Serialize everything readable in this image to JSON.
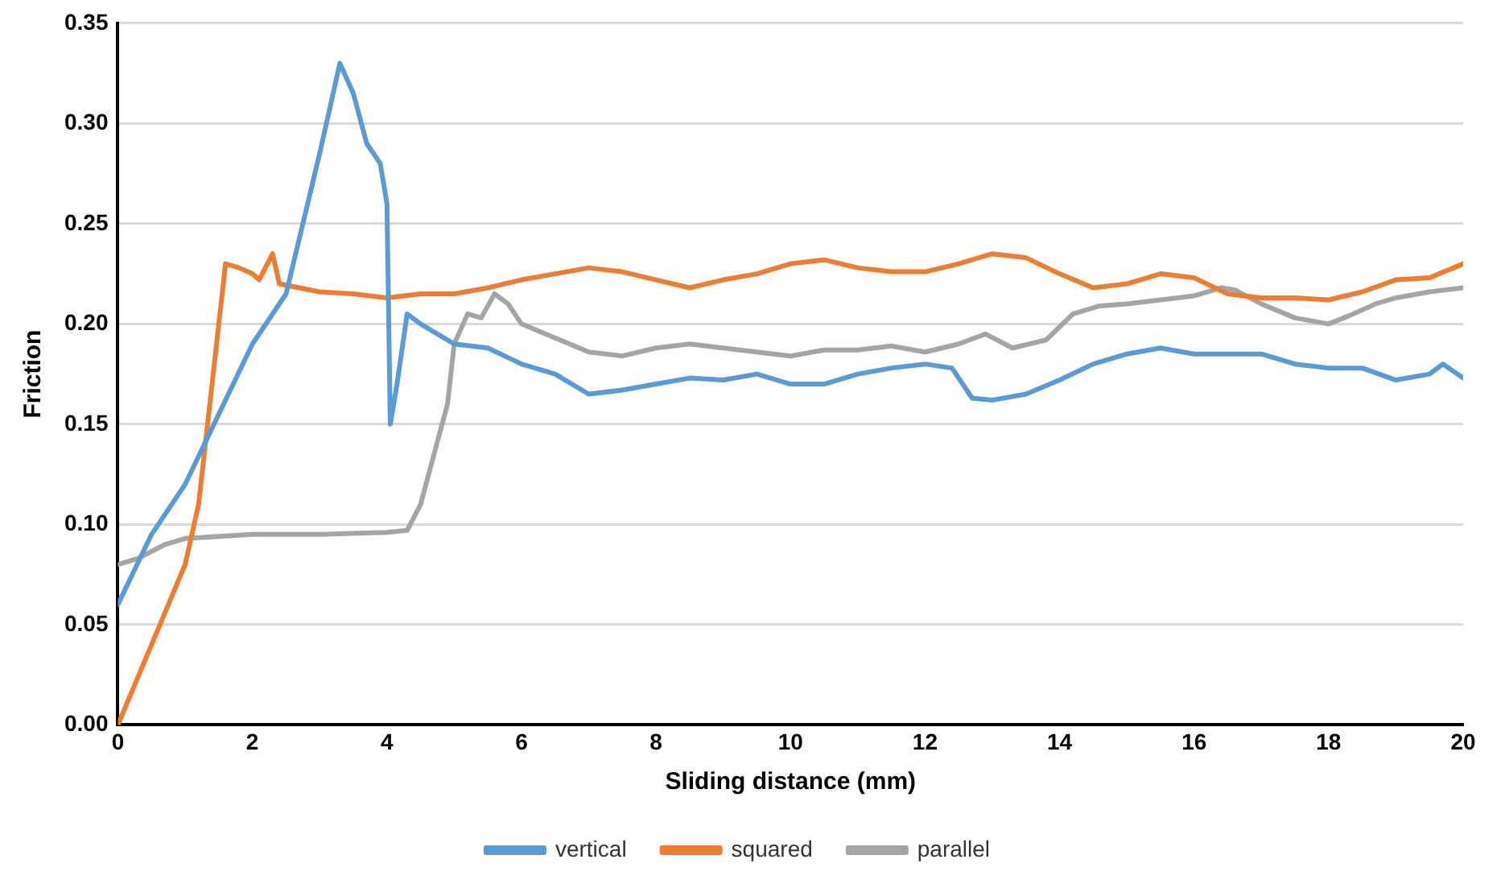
{
  "chart_data": {
    "type": "line",
    "xlabel": "Sliding distance (mm)",
    "ylabel": "Friction",
    "xlim": [
      0,
      20
    ],
    "xticks": [
      0,
      2,
      4,
      6,
      8,
      10,
      12,
      14,
      16,
      18,
      20
    ],
    "ylim": [
      0,
      0.35
    ],
    "yticks": [
      {
        "value": 0,
        "label": "0.00"
      },
      {
        "value": 0.05,
        "label": "0.05"
      },
      {
        "value": 0.1,
        "label": "0.10"
      },
      {
        "value": 0.15,
        "label": "0.15"
      },
      {
        "value": 0.2,
        "label": "0.20"
      },
      {
        "value": 0.25,
        "label": "0.25"
      },
      {
        "value": 0.3,
        "label": "0.30"
      },
      {
        "value": 0.35,
        "label": "0.35"
      }
    ],
    "grid": "y",
    "legend": "bottom",
    "marker": "none",
    "line_style": "solid",
    "series": [
      {
        "name": "vertical",
        "color": "#5b9bd5",
        "x": [
          0,
          0.5,
          1,
          1.5,
          2,
          2.5,
          3,
          3.3,
          3.5,
          3.7,
          3.9,
          4.0,
          4.05,
          4.15,
          4.3,
          4.5,
          5,
          5.5,
          6,
          6.5,
          7,
          7.5,
          8,
          8.5,
          9,
          9.5,
          10,
          10.5,
          11,
          11.5,
          12,
          12.4,
          12.7,
          13,
          13.5,
          14,
          14.5,
          15,
          15.5,
          16,
          16.5,
          17,
          17.5,
          18,
          18.5,
          19,
          19.5,
          19.7,
          20
        ],
        "values": [
          0.06,
          0.095,
          0.12,
          0.155,
          0.19,
          0.215,
          0.285,
          0.33,
          0.315,
          0.29,
          0.28,
          0.26,
          0.15,
          0.17,
          0.205,
          0.2,
          0.19,
          0.188,
          0.18,
          0.175,
          0.165,
          0.167,
          0.17,
          0.173,
          0.172,
          0.175,
          0.17,
          0.17,
          0.175,
          0.178,
          0.18,
          0.178,
          0.163,
          0.162,
          0.165,
          0.172,
          0.18,
          0.185,
          0.188,
          0.185,
          0.185,
          0.185,
          0.18,
          0.178,
          0.178,
          0.172,
          0.175,
          0.18,
          0.173
        ]
      },
      {
        "name": "squared",
        "color": "#ed7d31",
        "x": [
          0,
          0.5,
          1,
          1.2,
          1.4,
          1.6,
          1.8,
          2.0,
          2.1,
          2.3,
          2.4,
          2.7,
          3,
          3.5,
          4,
          4.5,
          5,
          5.5,
          6,
          6.5,
          7,
          7.5,
          8,
          8.5,
          9,
          9.5,
          10,
          10.5,
          11,
          11.5,
          12,
          12.5,
          13,
          13.5,
          14,
          14.5,
          15,
          15.5,
          16,
          16.5,
          17,
          17.5,
          18,
          18.5,
          19,
          19.5,
          20
        ],
        "values": [
          0,
          0.04,
          0.08,
          0.11,
          0.17,
          0.23,
          0.228,
          0.225,
          0.222,
          0.235,
          0.22,
          0.218,
          0.216,
          0.215,
          0.213,
          0.215,
          0.215,
          0.218,
          0.222,
          0.225,
          0.228,
          0.226,
          0.222,
          0.218,
          0.222,
          0.225,
          0.23,
          0.232,
          0.228,
          0.226,
          0.226,
          0.23,
          0.235,
          0.233,
          0.225,
          0.218,
          0.22,
          0.225,
          0.223,
          0.215,
          0.213,
          0.213,
          0.212,
          0.216,
          0.222,
          0.223,
          0.23
        ]
      },
      {
        "name": "parallel",
        "color": "#a5a5a5",
        "x": [
          0,
          0.3,
          0.7,
          1,
          2,
          3,
          4,
          4.3,
          4.5,
          4.7,
          4.9,
          5.0,
          5.2,
          5.4,
          5.6,
          5.8,
          6,
          6.5,
          7,
          7.5,
          8,
          8.5,
          9,
          9.5,
          10,
          10.5,
          11,
          11.5,
          12,
          12.5,
          12.9,
          13.3,
          13.8,
          14.2,
          14.6,
          15,
          15.5,
          16,
          16.4,
          16.6,
          17,
          17.5,
          18,
          18.3,
          18.7,
          19,
          19.5,
          20
        ],
        "values": [
          0.08,
          0.083,
          0.09,
          0.093,
          0.095,
          0.095,
          0.096,
          0.097,
          0.11,
          0.135,
          0.16,
          0.19,
          0.205,
          0.203,
          0.215,
          0.21,
          0.2,
          0.193,
          0.186,
          0.184,
          0.188,
          0.19,
          0.188,
          0.186,
          0.184,
          0.187,
          0.187,
          0.189,
          0.186,
          0.19,
          0.195,
          0.188,
          0.192,
          0.205,
          0.209,
          0.21,
          0.212,
          0.214,
          0.218,
          0.217,
          0.21,
          0.203,
          0.2,
          0.204,
          0.21,
          0.213,
          0.216,
          0.218
        ]
      }
    ]
  }
}
